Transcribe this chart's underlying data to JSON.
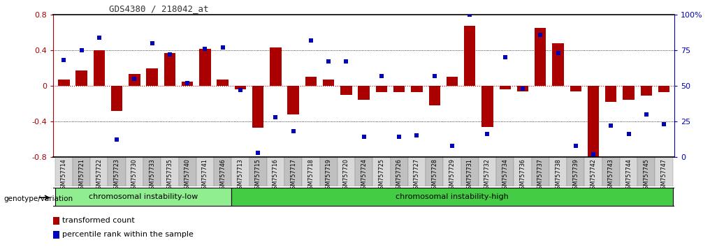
{
  "title": "GDS4380 / 218042_at",
  "samples": [
    "GSM757714",
    "GSM757721",
    "GSM757722",
    "GSM757723",
    "GSM757730",
    "GSM757733",
    "GSM757735",
    "GSM757740",
    "GSM757741",
    "GSM757746",
    "GSM757713",
    "GSM757715",
    "GSM757716",
    "GSM757717",
    "GSM757718",
    "GSM757719",
    "GSM757720",
    "GSM757724",
    "GSM757725",
    "GSM757726",
    "GSM757727",
    "GSM757728",
    "GSM757729",
    "GSM757731",
    "GSM757732",
    "GSM757734",
    "GSM757736",
    "GSM757737",
    "GSM757738",
    "GSM757739",
    "GSM757742",
    "GSM757743",
    "GSM757744",
    "GSM757745",
    "GSM757747"
  ],
  "bar_values": [
    0.07,
    0.17,
    0.4,
    -0.28,
    0.13,
    0.2,
    0.37,
    0.05,
    0.42,
    0.07,
    -0.04,
    -0.47,
    0.43,
    -0.32,
    0.1,
    0.07,
    -0.1,
    -0.16,
    -0.07,
    -0.07,
    -0.07,
    -0.22,
    0.1,
    0.68,
    -0.46,
    -0.04,
    -0.06,
    0.65,
    0.48,
    -0.06,
    -0.85,
    -0.18,
    -0.16,
    -0.11,
    -0.07
  ],
  "dot_percentiles": [
    68,
    75,
    84,
    12,
    55,
    80,
    72,
    52,
    76,
    77,
    47,
    3,
    28,
    18,
    82,
    67,
    67,
    14,
    57,
    14,
    15,
    57,
    8,
    100,
    16,
    70,
    48,
    86,
    73,
    8,
    2,
    22,
    16,
    30,
    23
  ],
  "group1_label": "chromosomal instability-low",
  "group2_label": "chromosomal instability-high",
  "group1_count": 10,
  "group2_count": 25,
  "genotype_label": "genotype/variation",
  "legend_bar": "transformed count",
  "legend_dot": "percentile rank within the sample",
  "ylim": [
    -0.8,
    0.8
  ],
  "bar_color": "#AA0000",
  "dot_color": "#0000BB",
  "zero_line_color": "#CC0000",
  "group1_bg": "#90EE90",
  "group2_bg": "#44CC44",
  "tick_bg_light": "#D8D8D8",
  "tick_bg_dark": "#C0C0C0",
  "title_color": "#333333"
}
